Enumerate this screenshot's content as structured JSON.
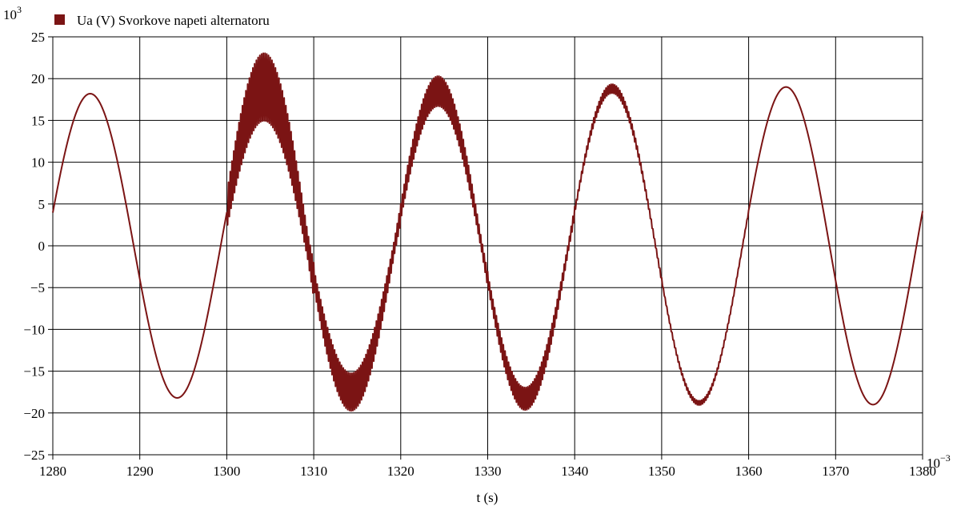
{
  "chart_data": {
    "type": "line",
    "title": "",
    "xlabel": "t (s)",
    "ylabel": "",
    "x_multiplier_label": "10",
    "x_multiplier_exp": "−3",
    "y_multiplier_label": "10",
    "y_multiplier_exp": "3",
    "xlim": [
      1280,
      1380
    ],
    "ylim": [
      -25,
      25
    ],
    "x_ticks": [
      "1280",
      "1290",
      "1300",
      "1310",
      "1320",
      "1330",
      "1340",
      "1350",
      "1360",
      "1370",
      "1380"
    ],
    "y_ticks": [
      "25",
      "20",
      "15",
      "10",
      "5",
      "0",
      "−5",
      "−10",
      "−15",
      "−20",
      "−25"
    ],
    "grid": true,
    "legend_position": "top-left",
    "series": [
      {
        "name": "Ua (V) Svorkove napeti alternatoru",
        "color": "#7b1414",
        "segments": [
          {
            "x_start": 1280,
            "x_end": 1300,
            "amplitude": 18.2,
            "ripple": 0,
            "phase_note": "sine 50 Hz, crosses zero rising near 1279.3 ms"
          },
          {
            "x_start": 1300,
            "x_end": 1310,
            "amplitude": 19.0,
            "ripple": 4.5
          },
          {
            "x_start": 1310,
            "x_end": 1320,
            "amplitude": 17.5,
            "ripple": 2.5
          },
          {
            "x_start": 1320,
            "x_end": 1330,
            "amplitude": 18.5,
            "ripple": 2.0
          },
          {
            "x_start": 1330,
            "x_end": 1340,
            "amplitude": 18.3,
            "ripple": 1.5
          },
          {
            "x_start": 1340,
            "x_end": 1350,
            "amplitude": 18.8,
            "ripple": 0.6
          },
          {
            "x_start": 1350,
            "x_end": 1360,
            "amplitude": 18.8,
            "ripple": 0.3
          },
          {
            "x_start": 1360,
            "x_end": 1380,
            "amplitude": 19.0,
            "ripple": 0
          }
        ],
        "key_points": [
          {
            "x": 1280,
            "y": 5
          },
          {
            "x": 1284,
            "y": 18
          },
          {
            "x": 1294,
            "y": -18.3
          },
          {
            "x": 1300,
            "y": 5
          },
          {
            "x": 1305,
            "y": 23
          },
          {
            "x": 1315,
            "y": -19.8
          },
          {
            "x": 1325,
            "y": 20.5
          },
          {
            "x": 1335,
            "y": -20
          },
          {
            "x": 1345,
            "y": 19.2
          },
          {
            "x": 1355,
            "y": -19.2
          },
          {
            "x": 1365,
            "y": 19
          },
          {
            "x": 1375,
            "y": -19
          },
          {
            "x": 1380,
            "y": 1.5
          }
        ]
      }
    ]
  }
}
